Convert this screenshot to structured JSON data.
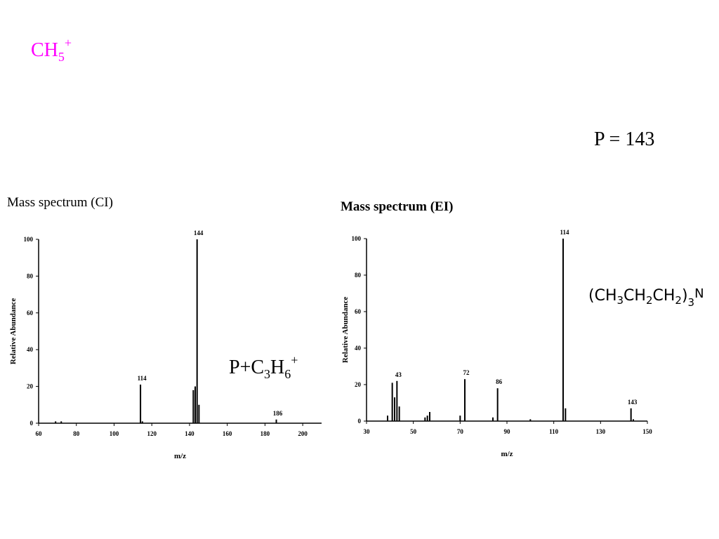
{
  "slide": {
    "reagent_ion": [
      "CH",
      "5",
      "+"
    ],
    "parent": "P = 143",
    "adduct": [
      "P+C",
      "3",
      "H",
      "6",
      "+"
    ],
    "formula": [
      "(CH",
      "3",
      "CH",
      "2",
      "CH",
      "2",
      ")",
      "3",
      "N"
    ]
  },
  "chart_data": [
    {
      "type": "bar",
      "title": "Mass spectrum (CI)",
      "x_label": "m/z",
      "y_label": "Relative Abundance",
      "x": [
        69,
        72,
        114,
        115,
        142,
        143,
        144,
        145,
        186
      ],
      "values": [
        1,
        1,
        21,
        1,
        18,
        20,
        100,
        10,
        2
      ],
      "peak_labels": [
        null,
        null,
        "114",
        null,
        null,
        null,
        "144",
        null,
        "186"
      ],
      "color": "#000000",
      "xlim": [
        60,
        210
      ],
      "xticks": [
        60,
        80,
        100,
        120,
        140,
        160,
        180,
        200
      ],
      "ylim": [
        0,
        100
      ],
      "yticks": [
        0,
        20,
        40,
        60,
        80,
        100
      ]
    },
    {
      "type": "bar",
      "title": "Mass spectrum (EI)",
      "x_label": "m/z",
      "y_label": "Relative Abundance",
      "x": [
        39,
        41,
        42,
        43,
        44,
        55,
        56,
        57,
        70,
        72,
        84,
        86,
        100,
        114,
        115,
        143,
        144
      ],
      "values": [
        3,
        21,
        13,
        22,
        8,
        2,
        3,
        5,
        3,
        23,
        2,
        18,
        1,
        100,
        7,
        7,
        1
      ],
      "peak_labels": [
        null,
        null,
        null,
        "43",
        null,
        null,
        null,
        null,
        null,
        "72",
        null,
        "86",
        null,
        "114",
        null,
        "143",
        null
      ],
      "color": "#000000",
      "xlim": [
        30,
        150
      ],
      "xticks": [
        30,
        50,
        70,
        90,
        110,
        130,
        150
      ],
      "ylim": [
        0,
        100
      ],
      "yticks": [
        0,
        20,
        40,
        60,
        80,
        100
      ]
    }
  ]
}
